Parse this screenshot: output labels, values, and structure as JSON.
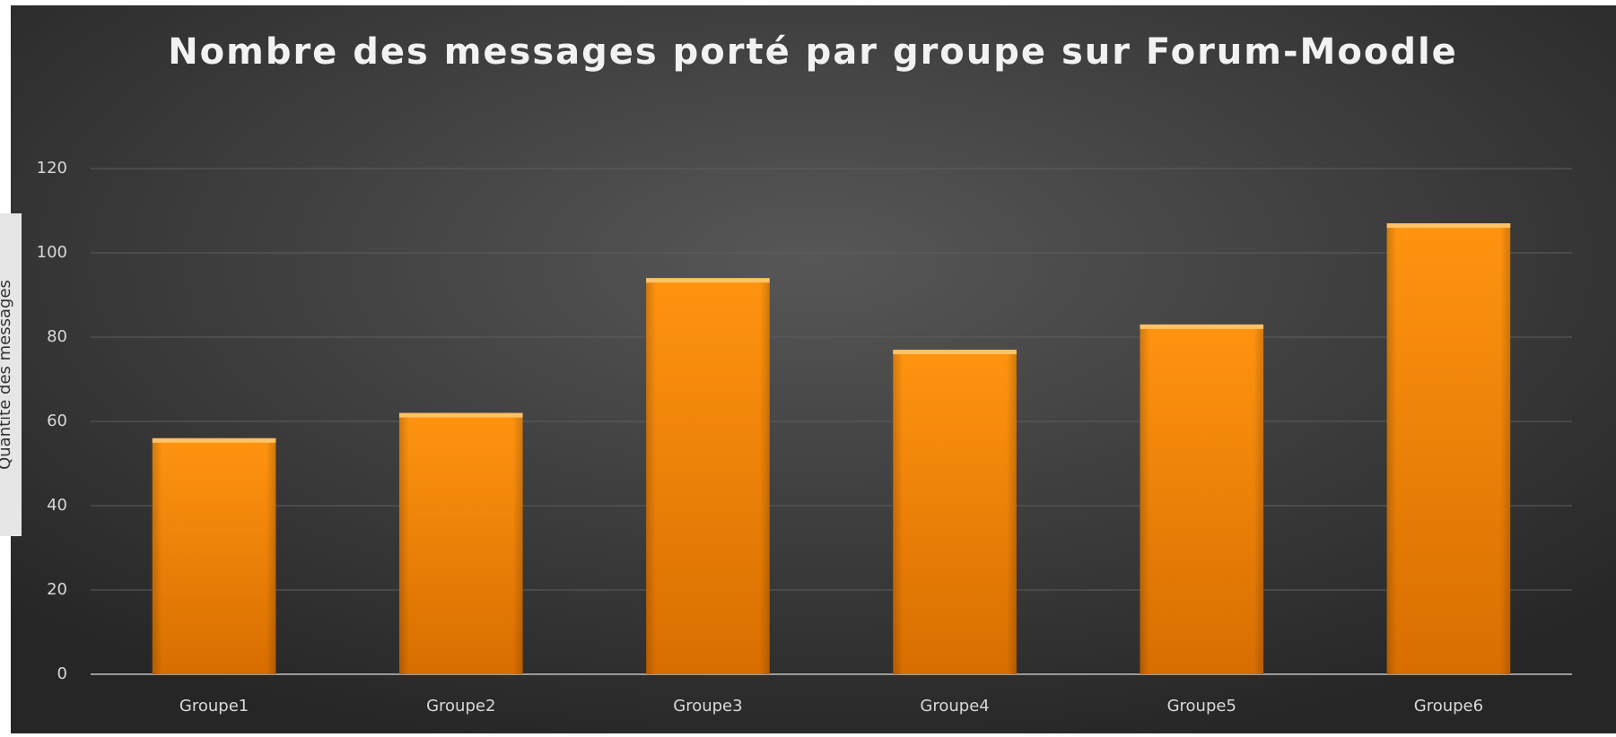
{
  "chart_data": {
    "type": "bar",
    "title": "Nombre des messages porté par groupe sur Forum-Moodle",
    "y_label": "Quantité des messages",
    "categories": [
      "Groupe1",
      "Groupe2",
      "Groupe3",
      "Groupe4",
      "Groupe5",
      "Groupe6"
    ],
    "values": [
      56,
      62,
      94,
      77,
      83,
      107
    ],
    "color": "#f58a07",
    "ylim": [
      0,
      120
    ],
    "yticks": [
      0,
      20,
      40,
      60,
      80,
      100,
      120
    ],
    "grid": true
  }
}
